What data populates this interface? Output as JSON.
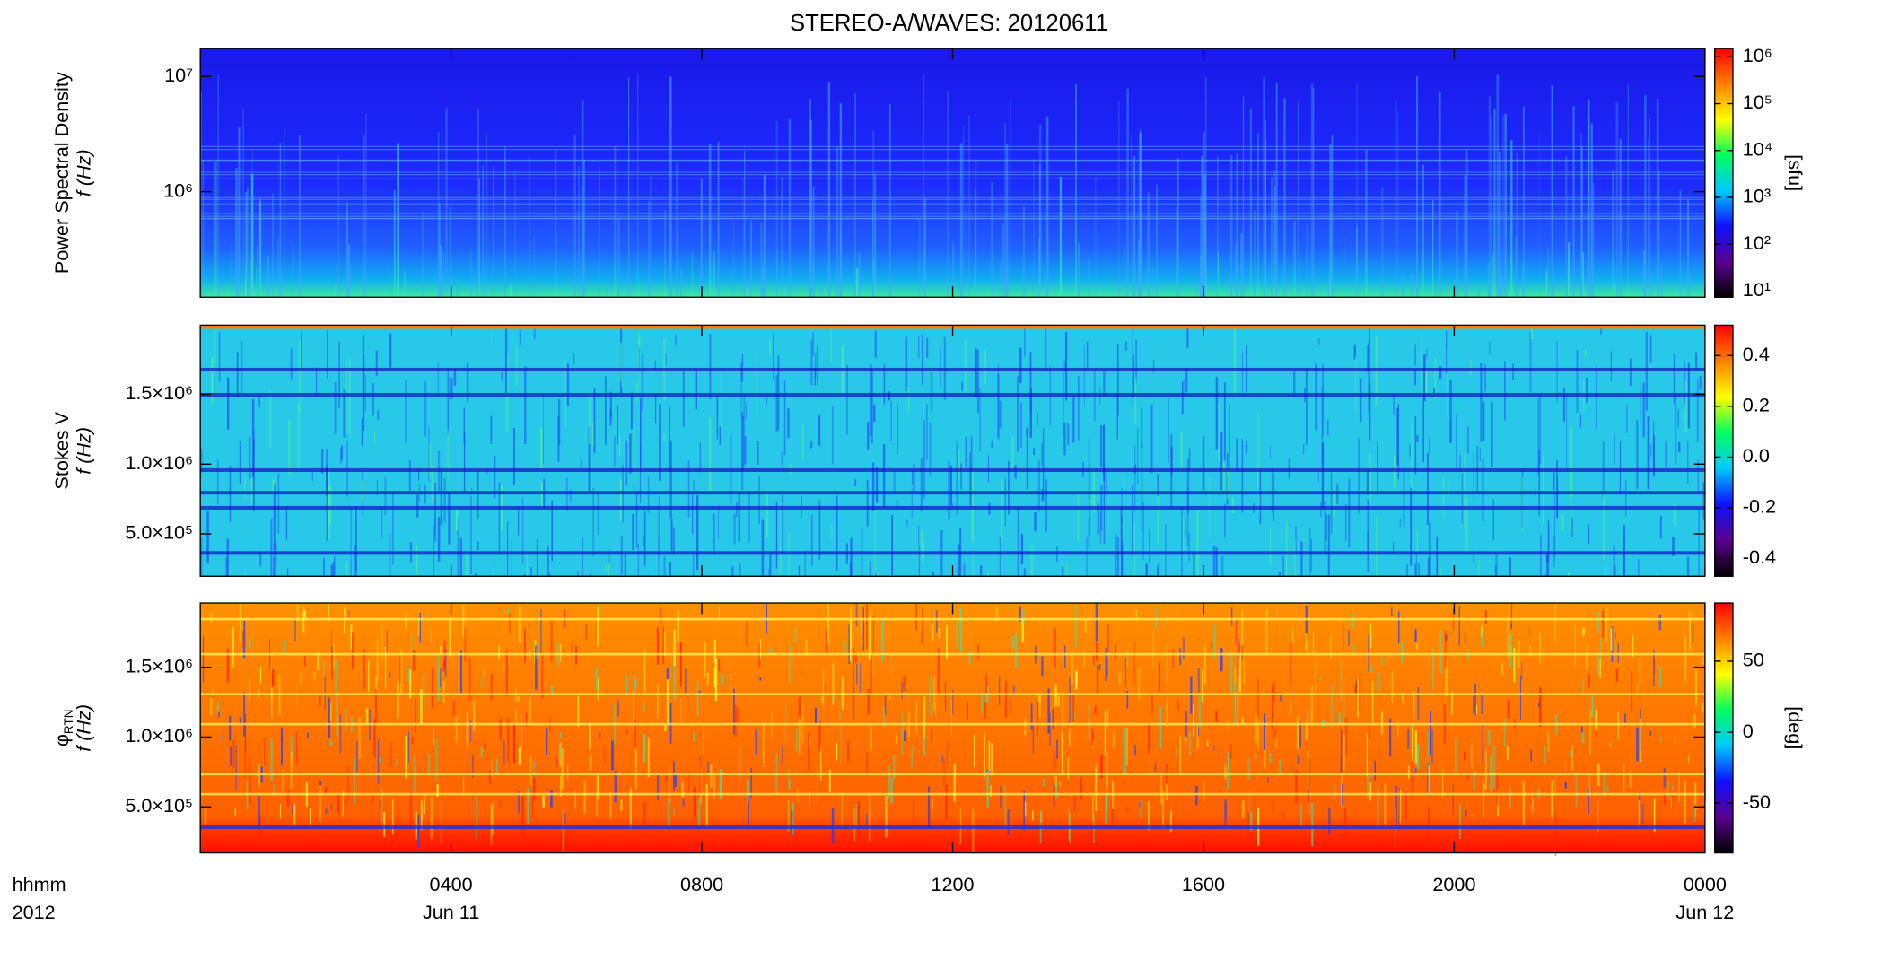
{
  "chart_data": [
    {
      "type": "spectrogram",
      "title": "STEREO-A/WAVES: 20120611",
      "ylabel": [
        "Power Spectral Density",
        "f (Hz)"
      ],
      "ylog": true,
      "ylim": [
        121000,
        17500000
      ],
      "yticks": [
        {
          "value": 1000000,
          "label": "10⁶"
        },
        {
          "value": 10000000,
          "label": "10⁷"
        }
      ],
      "xlim": [
        0,
        24
      ],
      "colorbar": {
        "log": true,
        "clim": [
          7.4,
          1500000
        ],
        "unit": "[sfu]",
        "ticks": [
          {
            "value": 10,
            "label": "10¹"
          },
          {
            "value": 100,
            "label": "10²"
          },
          {
            "value": 1000,
            "label": "10³"
          },
          {
            "value": 10000,
            "label": "10⁴"
          },
          {
            "value": 100000,
            "label": "10⁵"
          },
          {
            "value": 1000000,
            "label": "10⁶"
          }
        ]
      },
      "colormap": [
        "#000000",
        "#5a0090",
        "#1010ff",
        "#00c8ff",
        "#00ff60",
        "#ffff00",
        "#ff8000",
        "#ff0000"
      ]
    },
    {
      "type": "spectrogram",
      "ylabel": [
        "Stokes V",
        "f (Hz)"
      ],
      "ylog": false,
      "ylim": [
        196000,
        1996000
      ],
      "yticks": [
        {
          "value": 500000,
          "label": "5.0×10⁵"
        },
        {
          "value": 1000000,
          "label": "1.0×10⁶"
        },
        {
          "value": 1500000,
          "label": "1.5×10⁶"
        }
      ],
      "xlim": [
        0,
        24
      ],
      "colorbar": {
        "log": false,
        "clim": [
          -0.47,
          0.52
        ],
        "ticks": [
          -0.4,
          -0.2,
          {
            "value": 0,
            "label": "0.0"
          },
          0.2,
          0.4
        ]
      },
      "colormap": [
        "#000000",
        "#5a0090",
        "#1010ff",
        "#00c8ff",
        "#00ff60",
        "#ffff00",
        "#ff8000",
        "#ff0000"
      ]
    },
    {
      "type": "spectrogram",
      "ylabel": [
        "φ",
        "f (Hz)"
      ],
      "ylabel_subscript": "RTN",
      "ylog": false,
      "ylim": [
        170000,
        1960000
      ],
      "yticks": [
        {
          "value": 500000,
          "label": "5.0×10⁵"
        },
        {
          "value": 1000000,
          "label": "1.0×10⁶"
        },
        {
          "value": 1500000,
          "label": "1.5×10⁶"
        }
      ],
      "xlim": [
        0,
        24
      ],
      "xticks": [
        {
          "value": 4,
          "label": "0400"
        },
        {
          "value": 8,
          "label": "0800"
        },
        {
          "value": 12,
          "label": "1200"
        },
        {
          "value": 16,
          "label": "1600"
        },
        {
          "value": 20,
          "label": "2000"
        },
        {
          "value": 24,
          "label": "0000"
        }
      ],
      "date_labels": [
        {
          "value": 4,
          "label": "Jun 11"
        },
        {
          "value": 24,
          "label": "Jun 12"
        }
      ],
      "x_unit_label": "hhmm",
      "year_label": "2012",
      "colorbar": {
        "log": false,
        "clim": [
          -85,
          91
        ],
        "unit": "[deg]",
        "ticks": [
          -50,
          0,
          50
        ]
      },
      "colormap": [
        "#000000",
        "#5a0090",
        "#1010ff",
        "#00c8ff",
        "#00ff60",
        "#ffff00",
        "#ff8000",
        "#ff0000"
      ]
    }
  ]
}
